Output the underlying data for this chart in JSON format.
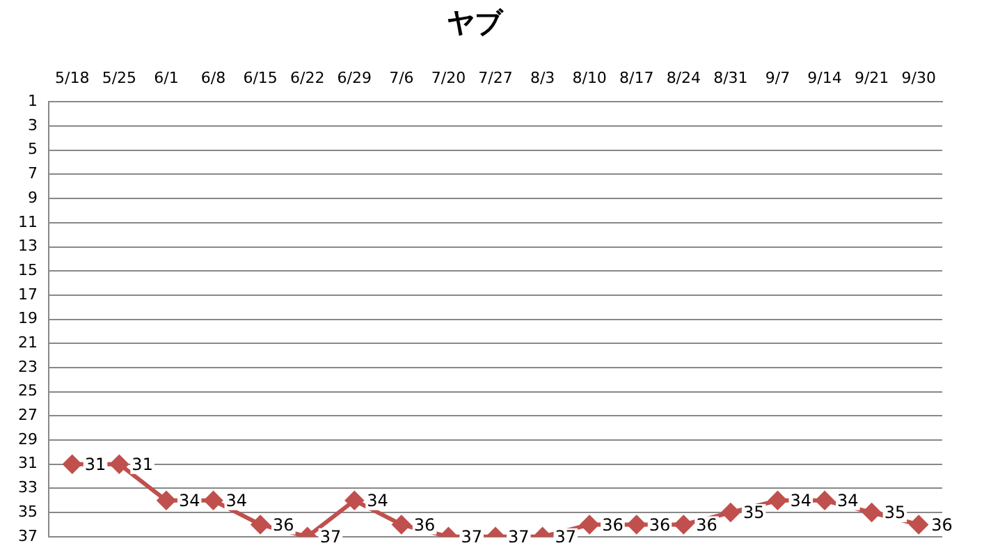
{
  "chart_data": {
    "type": "line",
    "title": "ヤブ",
    "categories": [
      "5/18",
      "5/25",
      "6/1",
      "6/8",
      "6/15",
      "6/22",
      "6/29",
      "7/6",
      "7/20",
      "7/27",
      "8/3",
      "8/10",
      "8/17",
      "8/24",
      "8/31",
      "9/7",
      "9/14",
      "9/21",
      "9/30"
    ],
    "series": [
      {
        "color": "#c0504d",
        "values": [
          31,
          31,
          34,
          34,
          36,
          37,
          34,
          36,
          37,
          37,
          37,
          36,
          36,
          36,
          35,
          34,
          34,
          35,
          36
        ]
      }
    ],
    "ylim": [
      37,
      1
    ],
    "yticks": [
      1,
      3,
      5,
      7,
      9,
      11,
      13,
      15,
      17,
      19,
      21,
      23,
      25,
      27,
      29,
      31,
      33,
      35,
      37
    ],
    "grid": "y",
    "legend": false,
    "marker": "diamond",
    "line_style": "solid",
    "data_labels": true
  }
}
